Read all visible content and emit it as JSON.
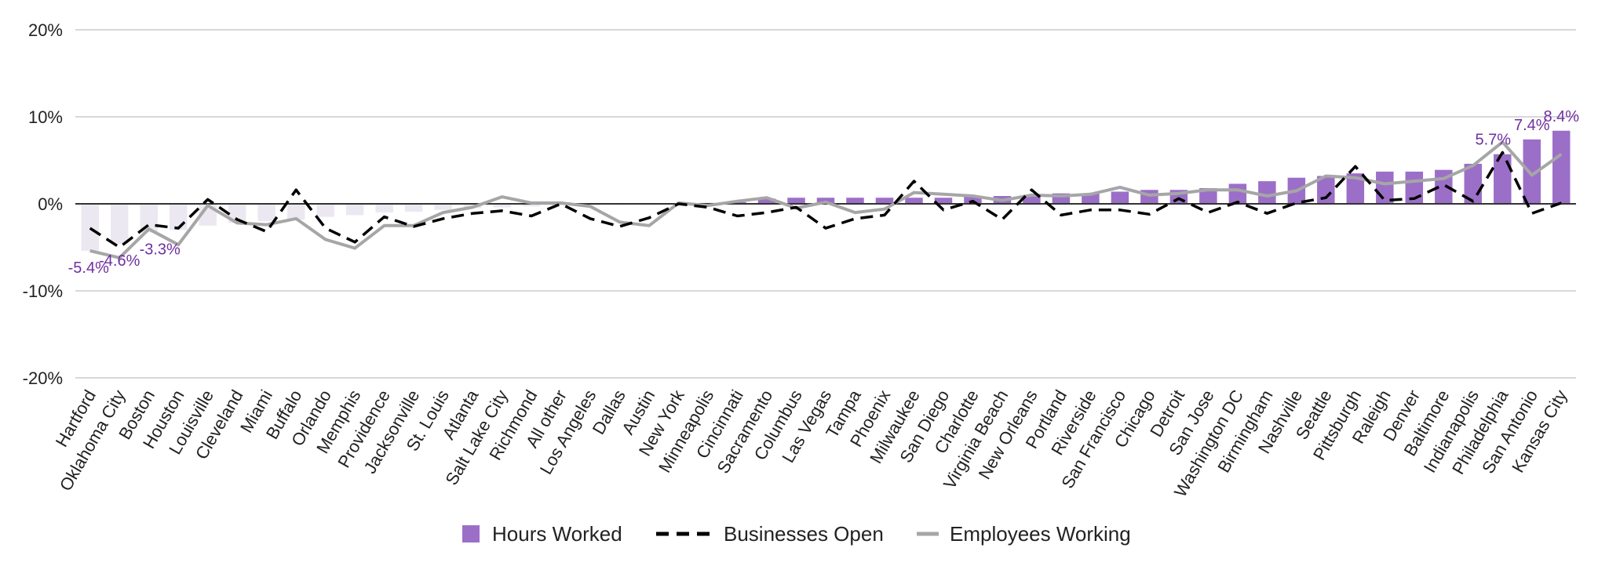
{
  "colors": {
    "hours_positive": "#9b6fc7",
    "hours_negative": "#ece8f1",
    "businesses_line": "#000000",
    "employees_line": "#a6a6a6",
    "label_color": "#7030a0",
    "grid": "#cccccc",
    "zero_line": "#333333"
  },
  "chart_data": {
    "type": "bar",
    "ylim": [
      -20,
      20
    ],
    "yticks": [
      -20,
      -10,
      0,
      10,
      20
    ],
    "ytick_labels": [
      "-20%",
      "-10%",
      "0%",
      "10%",
      "20%"
    ],
    "grid": true,
    "legend_position": "bottom",
    "categories": [
      "Hartford",
      "Oklahoma City",
      "Boston",
      "Houston",
      "Louisville",
      "Cleveland",
      "Miami",
      "Buffalo",
      "Orlando",
      "Memphis",
      "Providence",
      "Jacksonville",
      "St. Louis",
      "Atlanta",
      "Salt Lake City",
      "Richmond",
      "All other",
      "Los Angeles",
      "Dallas",
      "Austin",
      "New York",
      "Minneapolis",
      "Cincinnati",
      "Sacramento",
      "Columbus",
      "Las Vegas",
      "Tampa",
      "Phoenix",
      "Milwaukee",
      "San Diego",
      "Charlotte",
      "Virginia Beach",
      "New Orleans",
      "Portland",
      "Riverside",
      "San Francisco",
      "Chicago",
      "Detroit",
      "San Jose",
      "Washington DC",
      "Birmingham",
      "Nashville",
      "Seattle",
      "Pittsburgh",
      "Raleigh",
      "Denver",
      "Baltimore",
      "Indianapolis",
      "Philadelphia",
      "San Antonio",
      "Kansas City"
    ],
    "series": [
      {
        "name": "Hours Worked",
        "kind": "bar",
        "values": [
          -5.4,
          -4.6,
          -3.3,
          -3.0,
          -2.5,
          -2.2,
          -2.0,
          -1.8,
          -1.5,
          -1.3,
          -1.0,
          -0.9,
          -0.7,
          -0.5,
          -0.4,
          -0.3,
          -0.2,
          -0.2,
          -0.1,
          -0.1,
          0.0,
          0.1,
          0.2,
          0.6,
          0.7,
          0.7,
          0.7,
          0.7,
          0.7,
          0.7,
          0.8,
          0.9,
          1.0,
          1.2,
          1.2,
          1.4,
          1.6,
          1.6,
          1.8,
          2.3,
          2.6,
          3.0,
          3.2,
          3.5,
          3.7,
          3.7,
          3.9,
          4.6,
          5.7,
          7.4,
          8.4
        ]
      },
      {
        "name": "Businesses Open",
        "kind": "line",
        "values": [
          -2.8,
          -5.0,
          -2.4,
          -2.8,
          0.5,
          -1.8,
          -3.2,
          1.6,
          -2.8,
          -4.4,
          -1.5,
          -2.6,
          -1.7,
          -1.1,
          -0.8,
          -1.4,
          0.0,
          -1.7,
          -2.6,
          -1.6,
          0.0,
          -0.4,
          -1.4,
          -1.0,
          -0.4,
          -2.8,
          -1.7,
          -1.3,
          2.6,
          -0.7,
          0.3,
          -1.8,
          1.6,
          -1.3,
          -0.7,
          -0.7,
          -1.2,
          0.6,
          -1.0,
          0.2,
          -1.1,
          0.1,
          0.7,
          4.3,
          0.4,
          0.6,
          2.2,
          0.3,
          5.9,
          -1.1,
          0.1
        ]
      },
      {
        "name": "Employees Working",
        "kind": "line",
        "values": [
          -5.4,
          -6.2,
          -2.9,
          -4.7,
          -0.2,
          -2.2,
          -2.4,
          -1.7,
          -4.1,
          -5.1,
          -2.5,
          -2.5,
          -1.0,
          -0.4,
          0.8,
          0.1,
          0.1,
          -0.3,
          -2.1,
          -2.5,
          0.1,
          -0.2,
          0.3,
          0.7,
          -0.5,
          0.2,
          -1.0,
          -0.6,
          1.3,
          1.1,
          0.9,
          0.4,
          1.0,
          0.9,
          1.1,
          1.9,
          1.0,
          1.2,
          1.6,
          1.6,
          0.9,
          1.5,
          3.2,
          3.0,
          2.3,
          2.6,
          2.9,
          4.4,
          7.1,
          3.3,
          5.7
        ]
      }
    ],
    "data_labels": [
      {
        "index": 0,
        "text": "-5.4%"
      },
      {
        "index": 1,
        "text": "-4.6%"
      },
      {
        "index": 2,
        "text": "-3.3%"
      },
      {
        "index": 48,
        "text": "5.7%"
      },
      {
        "index": 49,
        "text": "7.4%"
      },
      {
        "index": 50,
        "text": "8.4%"
      }
    ]
  }
}
